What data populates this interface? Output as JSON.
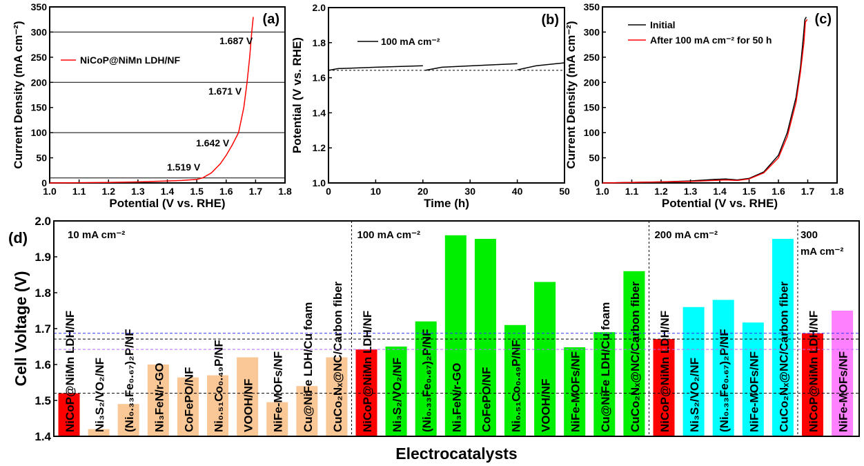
{
  "chart_data": [
    {
      "panel": "(a)",
      "type": "line",
      "xlabel": "Potential (V vs. RHE)",
      "ylabel": "Current Density (mA cm⁻²)",
      "xlim": [
        1.0,
        1.8
      ],
      "ylim": [
        0,
        350
      ],
      "xticks": [
        "1.0",
        "1.1",
        "1.2",
        "1.3",
        "1.4",
        "1.5",
        "1.6",
        "1.7",
        "1.8"
      ],
      "yticks": [
        "0",
        "50",
        "100",
        "150",
        "200",
        "250",
        "300",
        "350"
      ],
      "legend": "top-left",
      "hlines": [
        10,
        100,
        200,
        300
      ],
      "annotations": [
        "1.519 V",
        "1.642 V",
        "1.671 V",
        "1.687 V"
      ],
      "series": [
        {
          "name": "NiCoP@NiMn LDH/NF",
          "color": "#ff0000",
          "x": [
            1.0,
            1.1,
            1.2,
            1.3,
            1.4,
            1.45,
            1.5,
            1.52,
            1.55,
            1.58,
            1.6,
            1.62,
            1.642,
            1.66,
            1.671,
            1.68,
            1.687,
            1.692
          ],
          "y": [
            0,
            0.5,
            1,
            2,
            4,
            5,
            7,
            10,
            20,
            38,
            55,
            75,
            100,
            150,
            200,
            250,
            300,
            330
          ]
        }
      ]
    },
    {
      "panel": "(b)",
      "type": "line",
      "xlabel": "Time (h)",
      "ylabel": "Potential (V vs. RHE)",
      "xlim": [
        0,
        50
      ],
      "ylim": [
        1.0,
        2.0
      ],
      "xticks": [
        "0",
        "10",
        "20",
        "30",
        "40",
        "50"
      ],
      "yticks": [
        "1.0",
        "1.2",
        "1.4",
        "1.6",
        "1.8",
        "2.0"
      ],
      "legend": "top-left",
      "hline": 1.642,
      "series": [
        {
          "name": "100 mA cm⁻²",
          "color": "#000000",
          "segments": [
            {
              "x": [
                0,
                2,
                10,
                20
              ],
              "y": [
                1.642,
                1.652,
                1.66,
                1.668
              ]
            },
            {
              "x": [
                20.5,
                24,
                32,
                40
              ],
              "y": [
                1.642,
                1.66,
                1.67,
                1.68
              ]
            },
            {
              "x": [
                40,
                44,
                50
              ],
              "y": [
                1.645,
                1.668,
                1.685
              ]
            }
          ]
        }
      ]
    },
    {
      "panel": "(c)",
      "type": "line",
      "xlabel": "Potential (V vs. RHE)",
      "ylabel": "Current Density (mA cm⁻²)",
      "xlim": [
        1.0,
        1.8
      ],
      "ylim": [
        0,
        350
      ],
      "xticks": [
        "1.0",
        "1.1",
        "1.2",
        "1.3",
        "1.4",
        "1.5",
        "1.6",
        "1.7",
        "1.8"
      ],
      "yticks": [
        "0",
        "50",
        "100",
        "150",
        "200",
        "250",
        "300",
        "350"
      ],
      "legend": "top-left",
      "series": [
        {
          "name": "Initial",
          "color": "#000000",
          "x": [
            1.0,
            1.1,
            1.2,
            1.3,
            1.38,
            1.42,
            1.46,
            1.5,
            1.55,
            1.6,
            1.63,
            1.66,
            1.675,
            1.685,
            1.69,
            1.695
          ],
          "y": [
            0,
            1,
            2,
            4,
            7,
            8,
            6,
            9,
            22,
            55,
            100,
            170,
            230,
            290,
            325,
            330
          ]
        },
        {
          "name": "After 100 mA cm⁻² for 50 h",
          "color": "#ff0000",
          "x": [
            1.0,
            1.1,
            1.2,
            1.3,
            1.38,
            1.42,
            1.46,
            1.5,
            1.55,
            1.6,
            1.63,
            1.66,
            1.675,
            1.687,
            1.692,
            1.698
          ],
          "y": [
            0,
            1,
            2,
            3,
            5,
            6,
            5,
            8,
            20,
            50,
            92,
            160,
            220,
            280,
            320,
            325
          ]
        }
      ]
    },
    {
      "panel": "(d)",
      "type": "bar",
      "xlabel": "Electrocatalysts",
      "ylabel": "Cell Voltage (V)",
      "ylim": [
        1.4,
        2.0
      ],
      "yticks": [
        "1.4",
        "1.5",
        "1.6",
        "1.7",
        "1.8",
        "1.9",
        "2.0"
      ],
      "hlines": [
        {
          "y": 1.687,
          "color": "#3333ff"
        },
        {
          "y": 1.671,
          "color": "#000000"
        },
        {
          "y": 1.642,
          "color": "#b266ff"
        },
        {
          "y": 1.52,
          "color": "#000000"
        }
      ],
      "groups": [
        {
          "label": "10 mA cm⁻²",
          "color": "#f9c896",
          "categories": [
            "NiCoP@NiMn LDH/NF",
            "Ni₃S₂/VO₂/NF",
            "(Ni₀.₃₃Fe₀.₆₇)₂P/NF",
            "Ni₃FeN/r-GO",
            "CoFePO/NF",
            "Ni₀.₅₁Co₀.₄₉P/NF",
            "VOOH/NF",
            "NiFe-MOFs/NF",
            "Cu@NiFe LDH/Cu foam",
            "CuCo₂Nₓ@NC/Carbon fiber"
          ],
          "values": [
            1.52,
            1.42,
            1.49,
            1.6,
            1.564,
            1.57,
            1.62,
            1.495,
            1.54,
            1.62
          ]
        },
        {
          "label": "100 mA cm⁻²",
          "color": "#00ee00",
          "categories": [
            "NiCoP@NiMn LDH/NF",
            "Ni₃S₂/VO₂/NF",
            "(Ni₀.₃₃Fe₀.₆₇)₂P/NF",
            "Ni₃FeN/r-GO",
            "CoFePO/NF",
            "Ni₀.₅₁Co₀.₄₉P/NF",
            "VOOH/NF",
            "NiFe-MOFs/NF",
            "Cu@NiFe LDH/Cu foam",
            "CuCo₂Nₓ@NC/Carbon fiber"
          ],
          "values": [
            1.642,
            1.65,
            1.72,
            1.96,
            1.95,
            1.71,
            1.83,
            1.648,
            1.69,
            1.86
          ]
        },
        {
          "label": "200 mA cm⁻²",
          "color": "#00ffff",
          "categories": [
            "NiCoP@NiMn LDH/NF",
            "Ni₃S₂/VO₂/NF",
            "(Ni₀.₃₃Fe₀.₆₇)₂P/NF",
            "NiFe-MOFs/NF",
            "CuCo₂Nₓ@NC/Carbon fiber"
          ],
          "values": [
            1.671,
            1.76,
            1.78,
            1.717,
            1.95
          ]
        },
        {
          "label": "300 mA cm⁻²",
          "color": "#ff80ff",
          "categories": [
            "NiCoP@NiMn LDH/NF",
            "NiFe-MOFs/NF"
          ],
          "values": [
            1.687,
            1.75
          ]
        }
      ],
      "highlight_color": "#ff0000"
    }
  ]
}
